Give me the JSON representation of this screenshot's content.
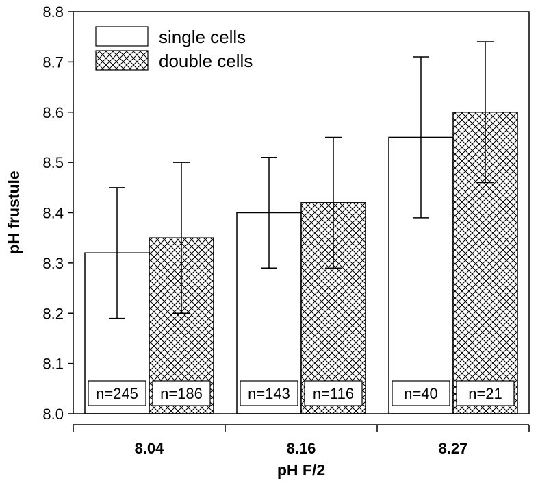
{
  "chart_data": {
    "type": "bar",
    "xlabel": "pH F/2",
    "ylabel": "pH frustule",
    "ylim": [
      8.0,
      8.8
    ],
    "yticks": [
      "8.0",
      "8.1",
      "8.2",
      "8.3",
      "8.4",
      "8.5",
      "8.6",
      "8.7",
      "8.8"
    ],
    "categories": [
      "8.04",
      "8.16",
      "8.27"
    ],
    "legend_position": "top-left",
    "grid": false,
    "series": [
      {
        "name": "single cells",
        "pattern": "none",
        "values": [
          8.32,
          8.4,
          8.55
        ],
        "error_low": [
          8.19,
          8.29,
          8.39
        ],
        "error_high": [
          8.45,
          8.51,
          8.71
        ],
        "n_labels": [
          "n=245",
          "n=143",
          "n=40"
        ]
      },
      {
        "name": "double cells",
        "pattern": "crosshatch",
        "values": [
          8.35,
          8.42,
          8.6
        ],
        "error_low": [
          8.2,
          8.29,
          8.46
        ],
        "error_high": [
          8.5,
          8.55,
          8.74
        ],
        "n_labels": [
          "n=186",
          "n=116",
          "n=21"
        ]
      }
    ],
    "colors": {
      "bar_stroke": "#000000",
      "single_fill": "#ffffff",
      "hatch": "#000000"
    }
  }
}
